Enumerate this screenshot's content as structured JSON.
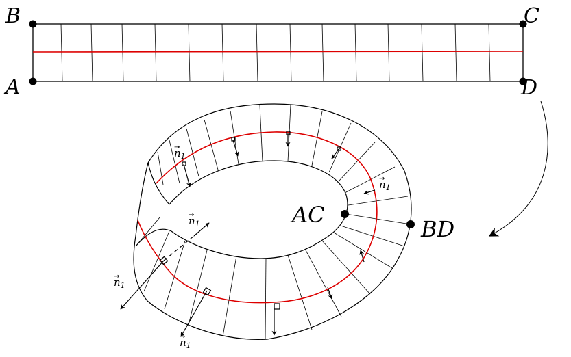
{
  "colors": {
    "ink": "#000000",
    "center_line": "#dd0000",
    "background": "#ffffff"
  },
  "strip": {
    "corners": {
      "A": "A",
      "B": "B",
      "C": "C",
      "D": "D"
    }
  },
  "mobius": {
    "points": {
      "AC": "AC",
      "BD": "BD"
    },
    "normal_label": "n",
    "normal_subscript": "1"
  }
}
